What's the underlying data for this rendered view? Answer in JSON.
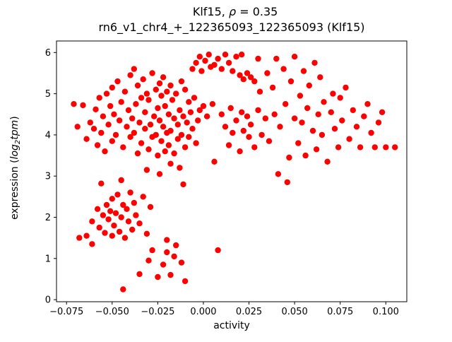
{
  "figure": {
    "title_line1": {
      "prefix": "Klf15, ",
      "rho": "ρ",
      "suffix": " = 0.35"
    },
    "title_line2": "rn6_v1_chr4_+_122365093_122365093 (Klf15)",
    "xlabel": "activity",
    "ylabel": {
      "prefix": "expression (",
      "log_word": "log",
      "log_sub": "2",
      "tpm_word": "tpm",
      "suffix": ")"
    }
  },
  "chart_data": {
    "type": "scatter",
    "title": "Klf15, ρ = 0.35",
    "subtitle": "rn6_v1_chr4_+_122365093_122365093 (Klf15)",
    "xlabel": "activity",
    "ylabel": "expression (log2 tpm)",
    "legend": "none",
    "grid": false,
    "marker_color": "#ff0000",
    "marker_radius": 4.2,
    "xlim": [
      -0.0805,
      0.1115
    ],
    "ylim": [
      -0.05,
      6.28
    ],
    "xticks": [
      -0.075,
      -0.05,
      -0.025,
      0.0,
      0.025,
      0.05,
      0.075,
      0.1
    ],
    "xtick_labels": [
      "−0.075",
      "−0.050",
      "−0.025",
      "0.000",
      "0.025",
      "0.050",
      "0.075",
      "0.100"
    ],
    "yticks": [
      0,
      1,
      2,
      3,
      4,
      5,
      6
    ],
    "ytick_labels": [
      "0",
      "1",
      "2",
      "3",
      "4",
      "5",
      "6"
    ],
    "points": [
      [
        -0.071,
        4.75
      ],
      [
        -0.066,
        4.72
      ],
      [
        -0.069,
        4.2
      ],
      [
        -0.064,
        3.9
      ],
      [
        -0.062,
        4.3
      ],
      [
        -0.06,
        4.15
      ],
      [
        -0.059,
        4.62
      ],
      [
        -0.058,
        3.75
      ],
      [
        -0.057,
        4.9
      ],
      [
        -0.056,
        4.05
      ],
      [
        -0.055,
        4.45
      ],
      [
        -0.054,
        3.6
      ],
      [
        -0.053,
        5.0
      ],
      [
        -0.052,
        4.25
      ],
      [
        -0.051,
        4.7
      ],
      [
        -0.05,
        3.85
      ],
      [
        -0.05,
        5.15
      ],
      [
        -0.049,
        4.5
      ],
      [
        -0.048,
        4.0
      ],
      [
        -0.047,
        5.3
      ],
      [
        -0.046,
        4.35
      ],
      [
        -0.045,
        4.8
      ],
      [
        -0.044,
        3.7
      ],
      [
        -0.043,
        5.05
      ],
      [
        -0.042,
        4.2
      ],
      [
        -0.041,
        4.6
      ],
      [
        -0.04,
        3.95
      ],
      [
        -0.04,
        5.45
      ],
      [
        -0.039,
        4.4
      ],
      [
        -0.038,
        5.6
      ],
      [
        -0.038,
        4.05
      ],
      [
        -0.037,
        4.75
      ],
      [
        -0.036,
        3.55
      ],
      [
        -0.036,
        5.2
      ],
      [
        -0.035,
        4.3
      ],
      [
        -0.034,
        4.9
      ],
      [
        -0.034,
        3.8
      ],
      [
        -0.033,
        5.35
      ],
      [
        -0.032,
        4.15
      ],
      [
        -0.032,
        4.55
      ],
      [
        -0.031,
        5.0
      ],
      [
        -0.03,
        3.65
      ],
      [
        -0.03,
        4.85
      ],
      [
        -0.029,
        4.25
      ],
      [
        -0.028,
        5.5
      ],
      [
        -0.028,
        3.95
      ],
      [
        -0.027,
        4.45
      ],
      [
        -0.026,
        5.1
      ],
      [
        -0.026,
        4.0
      ],
      [
        -0.025,
        4.65
      ],
      [
        -0.025,
        3.5
      ],
      [
        -0.024,
        5.25
      ],
      [
        -0.024,
        4.35
      ],
      [
        -0.023,
        3.85
      ],
      [
        -0.023,
        4.95
      ],
      [
        -0.022,
        4.2
      ],
      [
        -0.022,
        5.4
      ],
      [
        -0.021,
        3.6
      ],
      [
        -0.021,
        4.7
      ],
      [
        -0.02,
        4.05
      ],
      [
        -0.02,
        5.05
      ],
      [
        -0.019,
        4.5
      ],
      [
        -0.019,
        3.75
      ],
      [
        -0.018,
        5.2
      ],
      [
        -0.018,
        4.1
      ],
      [
        -0.017,
        4.85
      ],
      [
        -0.016,
        3.55
      ],
      [
        -0.016,
        4.4
      ],
      [
        -0.015,
        5.0
      ],
      [
        -0.014,
        4.25
      ],
      [
        -0.014,
        3.9
      ],
      [
        -0.013,
        4.6
      ],
      [
        -0.012,
        5.3
      ],
      [
        -0.012,
        4.0
      ],
      [
        -0.011,
        4.45
      ],
      [
        -0.01,
        3.7
      ],
      [
        -0.01,
        5.1
      ],
      [
        -0.009,
        4.3
      ],
      [
        -0.008,
        4.8
      ],
      [
        -0.008,
        3.95
      ],
      [
        -0.007,
        4.55
      ],
      [
        -0.006,
        5.6
      ],
      [
        -0.006,
        4.15
      ],
      [
        -0.005,
        4.9
      ],
      [
        -0.004,
        3.8
      ],
      [
        -0.004,
        5.75
      ],
      [
        -0.003,
        4.35
      ],
      [
        -0.002,
        5.9
      ],
      [
        -0.002,
        4.6
      ],
      [
        -0.001,
        5.55
      ],
      [
        0.0,
        4.7
      ],
      [
        0.001,
        5.8
      ],
      [
        0.002,
        4.45
      ],
      [
        0.003,
        5.95
      ],
      [
        0.004,
        5.65
      ],
      [
        0.005,
        4.75
      ],
      [
        -0.031,
        3.15
      ],
      [
        -0.024,
        3.05
      ],
      [
        -0.018,
        3.3
      ],
      [
        -0.011,
        2.8
      ],
      [
        -0.013,
        3.2
      ],
      [
        0.006,
        3.35
      ],
      [
        -0.045,
        2.9
      ],
      [
        -0.056,
        2.82
      ],
      [
        -0.068,
        1.5
      ],
      [
        -0.064,
        1.55
      ],
      [
        -0.061,
        1.9
      ],
      [
        -0.058,
        2.2
      ],
      [
        -0.057,
        1.75
      ],
      [
        -0.055,
        2.05
      ],
      [
        -0.054,
        1.62
      ],
      [
        -0.053,
        2.3
      ],
      [
        -0.052,
        1.95
      ],
      [
        -0.051,
        2.15
      ],
      [
        -0.05,
        1.55
      ],
      [
        -0.05,
        2.45
      ],
      [
        -0.049,
        1.8
      ],
      [
        -0.048,
        2.1
      ],
      [
        -0.047,
        2.55
      ],
      [
        -0.046,
        1.65
      ],
      [
        -0.045,
        2.0
      ],
      [
        -0.044,
        2.3
      ],
      [
        -0.043,
        1.5
      ],
      [
        -0.042,
        2.2
      ],
      [
        -0.041,
        1.9
      ],
      [
        -0.04,
        2.6
      ],
      [
        -0.039,
        1.7
      ],
      [
        -0.038,
        2.35
      ],
      [
        -0.037,
        2.05
      ],
      [
        -0.035,
        1.85
      ],
      [
        -0.033,
        2.5
      ],
      [
        -0.031,
        1.6
      ],
      [
        -0.029,
        2.25
      ],
      [
        -0.061,
        1.35
      ],
      [
        -0.044,
        0.25
      ],
      [
        -0.035,
        0.62
      ],
      [
        -0.03,
        0.95
      ],
      [
        -0.028,
        1.2
      ],
      [
        -0.025,
        0.55
      ],
      [
        -0.022,
        0.85
      ],
      [
        -0.02,
        1.15
      ],
      [
        -0.018,
        0.6
      ],
      [
        -0.015,
        1.32
      ],
      [
        -0.012,
        0.9
      ],
      [
        -0.01,
        0.45
      ],
      [
        0.008,
        1.2
      ],
      [
        -0.02,
        1.45
      ],
      [
        -0.016,
        1.05
      ],
      [
        0.006,
        5.7
      ],
      [
        0.008,
        5.85
      ],
      [
        0.01,
        5.6
      ],
      [
        0.012,
        5.95
      ],
      [
        0.014,
        5.75
      ],
      [
        0.016,
        5.55
      ],
      [
        0.018,
        5.9
      ],
      [
        0.02,
        5.45
      ],
      [
        0.021,
        5.95
      ],
      [
        0.022,
        5.35
      ],
      [
        0.024,
        5.5
      ],
      [
        0.026,
        5.4
      ],
      [
        0.028,
        5.3
      ],
      [
        0.03,
        5.85
      ],
      [
        0.01,
        4.5
      ],
      [
        0.012,
        4.2
      ],
      [
        0.014,
        3.75
      ],
      [
        0.015,
        4.65
      ],
      [
        0.016,
        4.05
      ],
      [
        0.018,
        4.35
      ],
      [
        0.02,
        3.6
      ],
      [
        0.021,
        4.55
      ],
      [
        0.022,
        4.1
      ],
      [
        0.024,
        4.45
      ],
      [
        0.025,
        3.95
      ],
      [
        0.026,
        4.25
      ],
      [
        0.028,
        3.7
      ],
      [
        0.03,
        4.6
      ],
      [
        0.031,
        5.05
      ],
      [
        0.032,
        4.0
      ],
      [
        0.034,
        4.4
      ],
      [
        0.035,
        5.5
      ],
      [
        0.036,
        3.85
      ],
      [
        0.038,
        5.15
      ],
      [
        0.039,
        4.5
      ],
      [
        0.04,
        5.85
      ],
      [
        0.041,
        3.05
      ],
      [
        0.042,
        4.2
      ],
      [
        0.044,
        5.6
      ],
      [
        0.045,
        4.75
      ],
      [
        0.046,
        2.85
      ],
      [
        0.047,
        3.45
      ],
      [
        0.048,
        5.3
      ],
      [
        0.05,
        4.4
      ],
      [
        0.05,
        5.9
      ],
      [
        0.052,
        3.8
      ],
      [
        0.053,
        4.95
      ],
      [
        0.054,
        4.3
      ],
      [
        0.055,
        5.55
      ],
      [
        0.056,
        3.5
      ],
      [
        0.057,
        4.65
      ],
      [
        0.058,
        5.2
      ],
      [
        0.06,
        4.1
      ],
      [
        0.061,
        5.75
      ],
      [
        0.062,
        3.65
      ],
      [
        0.063,
        4.5
      ],
      [
        0.064,
        5.4
      ],
      [
        0.065,
        4.0
      ],
      [
        0.066,
        4.8
      ],
      [
        0.068,
        3.35
      ],
      [
        0.07,
        4.55
      ],
      [
        0.071,
        5.0
      ],
      [
        0.072,
        4.15
      ],
      [
        0.074,
        3.7
      ],
      [
        0.075,
        4.9
      ],
      [
        0.076,
        4.35
      ],
      [
        0.078,
        5.15
      ],
      [
        0.08,
        3.9
      ],
      [
        0.082,
        4.6
      ],
      [
        0.084,
        4.2
      ],
      [
        0.086,
        3.7
      ],
      [
        0.088,
        4.45
      ],
      [
        0.09,
        4.75
      ],
      [
        0.092,
        4.05
      ],
      [
        0.094,
        3.7
      ],
      [
        0.096,
        4.3
      ],
      [
        0.098,
        4.55
      ],
      [
        0.1,
        3.7
      ],
      [
        0.105,
        3.7
      ]
    ]
  }
}
